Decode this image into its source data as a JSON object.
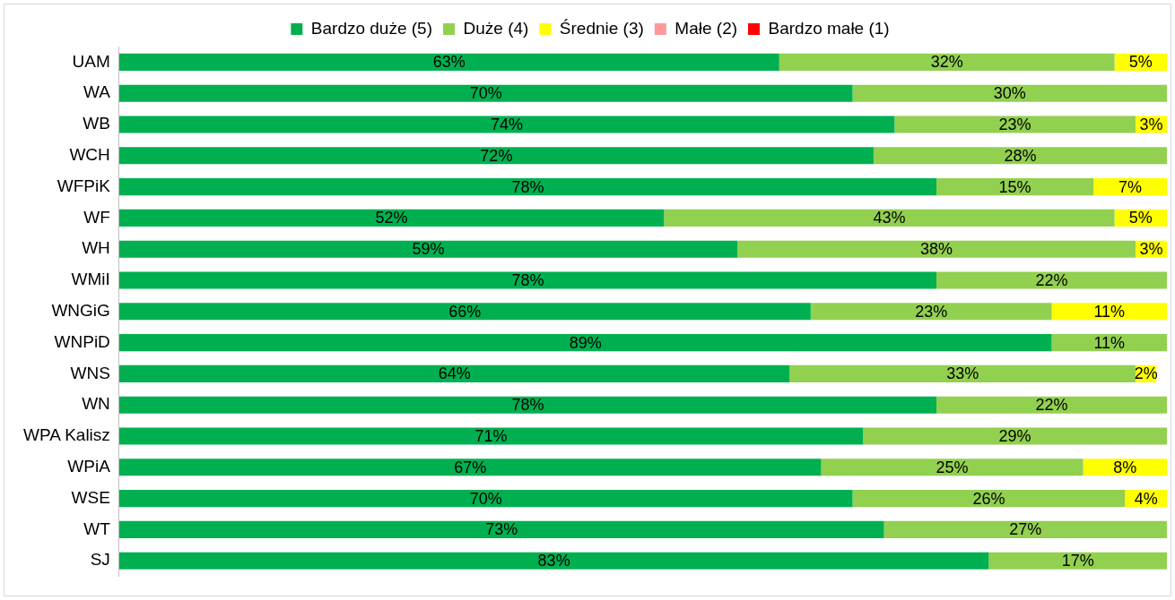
{
  "chart_data": {
    "type": "bar",
    "orientation": "horizontal",
    "stacked": true,
    "legend": "top",
    "grid": false,
    "categories": [
      "UAM",
      "WA",
      "WB",
      "WCH",
      "WFPiK",
      "WF",
      "WH",
      "WMiI",
      "WNGiG",
      "WNPiD",
      "WNS",
      "WN",
      "WPA Kalisz",
      "WPiA",
      "WSE",
      "WT",
      "SJ"
    ],
    "xlim": [
      0,
      100
    ],
    "series": [
      {
        "name": "Bardzo duże (5)",
        "color": "#00b050",
        "values": [
          63,
          70,
          74,
          72,
          78,
          52,
          59,
          78,
          66,
          89,
          64,
          78,
          71,
          67,
          70,
          73,
          83
        ],
        "value_labels": [
          "63%",
          "70%",
          "74%",
          "72%",
          "78%",
          "52%",
          "59%",
          "78%",
          "66%",
          "89%",
          "64%",
          "78%",
          "71%",
          "67%",
          "70%",
          "73%",
          "83%"
        ]
      },
      {
        "name": "Duże (4)",
        "color": "#92d050",
        "values": [
          32,
          30,
          23,
          28,
          15,
          43,
          38,
          22,
          23,
          11,
          33,
          22,
          29,
          25,
          26,
          27,
          17
        ],
        "value_labels": [
          "32%",
          "30%",
          "23%",
          "28%",
          "15%",
          "43%",
          "38%",
          "22%",
          "23%",
          "11%",
          "33%",
          "22%",
          "29%",
          "25%",
          "26%",
          "27%",
          "17%"
        ]
      },
      {
        "name": "Średnie (3)",
        "color": "#ffff00",
        "values": [
          5,
          null,
          3,
          null,
          7,
          5,
          3,
          null,
          11,
          null,
          2,
          null,
          null,
          8,
          4,
          null,
          null
        ],
        "value_labels": [
          "5%",
          null,
          "3%",
          null,
          "7%",
          "5%",
          "3%",
          null,
          "11%",
          null,
          "2%",
          null,
          null,
          "8%",
          "4%",
          null,
          null
        ]
      },
      {
        "name": "Małe (2)",
        "color": "#ff9999",
        "values": [
          null,
          null,
          null,
          null,
          null,
          null,
          null,
          null,
          null,
          null,
          null,
          null,
          null,
          null,
          null,
          null,
          null
        ]
      },
      {
        "name": "Bardzo małe (1)",
        "color": "#ff0000",
        "values": [
          null,
          null,
          null,
          null,
          null,
          null,
          null,
          null,
          null,
          null,
          null,
          null,
          null,
          null,
          null,
          null,
          null
        ]
      }
    ]
  }
}
